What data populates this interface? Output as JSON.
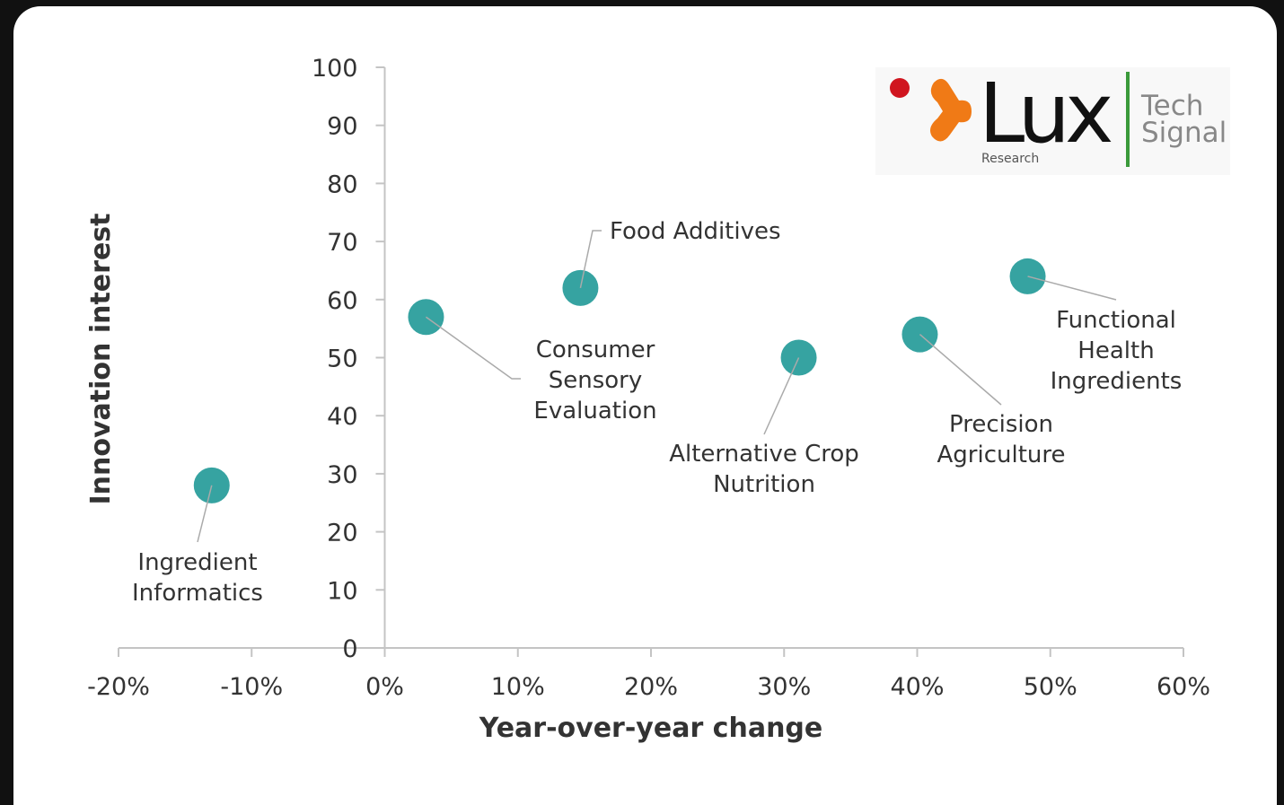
{
  "chart_data": {
    "type": "scatter",
    "xlabel": "Year-over-year change",
    "ylabel": "Innovation interest",
    "xlim": [
      -20,
      60
    ],
    "ylim": [
      0,
      100
    ],
    "xticks": [
      {
        "value": -20,
        "label": "-20%"
      },
      {
        "value": -10,
        "label": "-10%"
      },
      {
        "value": 0,
        "label": "0%"
      },
      {
        "value": 10,
        "label": "10%"
      },
      {
        "value": 20,
        "label": "20%"
      },
      {
        "value": 30,
        "label": "30%"
      },
      {
        "value": 40,
        "label": "40%"
      },
      {
        "value": 50,
        "label": "50%"
      },
      {
        "value": 60,
        "label": "60%"
      }
    ],
    "yticks": [
      0,
      10,
      20,
      30,
      40,
      50,
      60,
      70,
      80,
      90,
      100
    ],
    "color": "#36a3a1",
    "x": [
      -13,
      3.1,
      14.7,
      31.1,
      40.2,
      48.3
    ],
    "values": [
      28,
      57,
      62,
      50,
      54,
      64
    ],
    "labels": [
      [
        "Ingredient",
        "Informatics"
      ],
      [
        "Consumer",
        "Sensory",
        "Evaluation"
      ],
      [
        "Food Additives"
      ],
      [
        "Alternative Crop",
        "Nutrition"
      ],
      [
        "Precision",
        "Agriculture"
      ],
      [
        "Functional",
        "Health",
        "Ingredients"
      ]
    ]
  },
  "logo": {
    "name": "Lux",
    "sub": "Research",
    "tag": [
      "Tech",
      "Signal"
    ]
  }
}
